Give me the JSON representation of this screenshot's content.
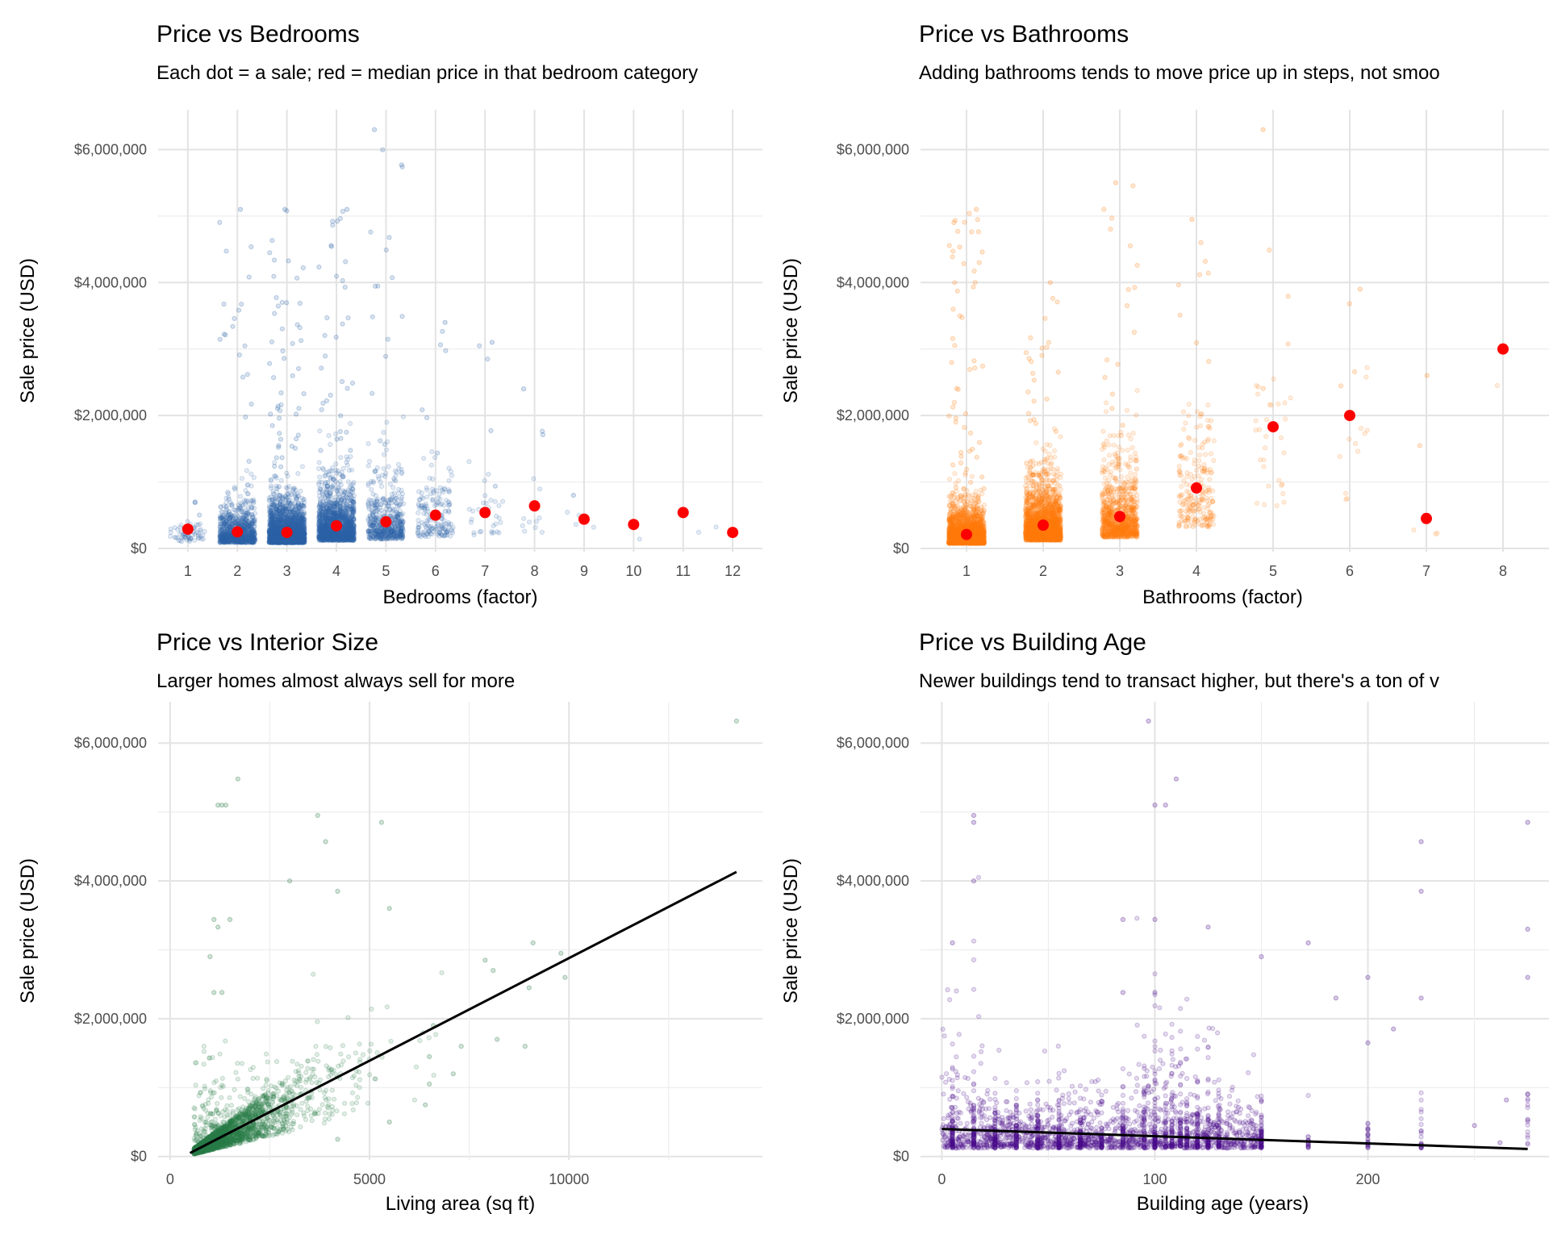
{
  "chart_data": [
    {
      "type": "scatter",
      "title": "Price vs Bedrooms",
      "subtitle": "Each dot = a sale; red = median price in that bedroom category",
      "xlabel": "Bedrooms (factor)",
      "ylabel": "Sale price (USD)",
      "x_scale": "discrete",
      "categories": [
        "1",
        "2",
        "3",
        "4",
        "5",
        "6",
        "7",
        "8",
        "9",
        "10",
        "11",
        "12"
      ],
      "ylim": [
        -50000,
        6600000
      ],
      "y_ticks": [
        0,
        2000000,
        4000000,
        6000000
      ],
      "y_tick_labels": [
        "$0",
        "$2,000,000",
        "$4,000,000",
        "$6,000,000"
      ],
      "grid": true,
      "point_color": "#2e65a8",
      "series": [
        {
          "name": "median",
          "color": "#ff0000",
          "values": [
            290000,
            250000,
            240000,
            340000,
            400000,
            500000,
            540000,
            640000,
            440000,
            360000,
            540000,
            240000
          ]
        }
      ],
      "category_spread": [
        {
          "n": 60,
          "max": 700000,
          "count_upper": 2
        },
        {
          "n": 900,
          "max": 5100000,
          "count_upper": 20
        },
        {
          "n": 2400,
          "max": 5100000,
          "count_upper": 60
        },
        {
          "n": 1600,
          "max": 5100000,
          "count_upper": 40
        },
        {
          "n": 500,
          "max": 6300000,
          "count_upper": 20
        },
        {
          "n": 160,
          "max": 3400000,
          "count_upper": 10
        },
        {
          "n": 30,
          "max": 3100000,
          "count_upper": 4
        },
        {
          "n": 10,
          "max": 2400000,
          "count_upper": 2
        },
        {
          "n": 4,
          "max": 800000,
          "count_upper": 0
        },
        {
          "n": 1,
          "max": 360000,
          "count_upper": 0
        },
        {
          "n": 1,
          "max": 540000,
          "count_upper": 0
        },
        {
          "n": 1,
          "max": 240000,
          "count_upper": 0
        }
      ]
    },
    {
      "type": "scatter",
      "title": "Price vs Bathrooms",
      "subtitle": "Adding bathrooms tends to move price up in steps, not smoo",
      "xlabel": "Bathrooms (factor)",
      "ylabel": "Sale price (USD)",
      "x_scale": "discrete",
      "categories": [
        "1",
        "2",
        "3",
        "4",
        "5",
        "6",
        "7",
        "8"
      ],
      "ylim": [
        -50000,
        6600000
      ],
      "y_ticks": [
        0,
        2000000,
        4000000,
        6000000
      ],
      "y_tick_labels": [
        "$0",
        "$2,000,000",
        "$4,000,000",
        "$6,000,000"
      ],
      "grid": true,
      "point_color": "#ff7f0e",
      "series": [
        {
          "name": "median",
          "color": "#ff0000",
          "values": [
            210000,
            350000,
            480000,
            910000,
            1830000,
            2000000,
            450000,
            3000000
          ]
        }
      ],
      "category_spread": [
        {
          "n": 2400,
          "max": 5100000,
          "count_upper": 60
        },
        {
          "n": 2200,
          "max": 4000000,
          "count_upper": 25
        },
        {
          "n": 900,
          "max": 5500000,
          "count_upper": 20
        },
        {
          "n": 220,
          "max": 4950000,
          "count_upper": 8
        },
        {
          "n": 30,
          "max": 6300000,
          "count_upper": 4
        },
        {
          "n": 12,
          "max": 3900000,
          "count_upper": 3
        },
        {
          "n": 3,
          "max": 2600000,
          "count_upper": 1
        },
        {
          "n": 1,
          "max": 3000000,
          "count_upper": 0
        }
      ]
    },
    {
      "type": "scatter",
      "title": "Price vs Interior Size",
      "subtitle": "Larger homes almost always sell for more",
      "xlabel": "Living area (sq ft)",
      "ylabel": "Sale price (USD)",
      "xlim": [
        -300,
        14850
      ],
      "x_ticks": [
        0,
        5000,
        10000
      ],
      "x_tick_labels": [
        "0",
        "5000",
        "10000"
      ],
      "ylim": [
        -50000,
        6600000
      ],
      "y_ticks": [
        0,
        2000000,
        4000000,
        6000000
      ],
      "y_tick_labels": [
        "$0",
        "$2,000,000",
        "$4,000,000",
        "$6,000,000"
      ],
      "grid": true,
      "point_color": "#2e7d4a",
      "trend_line": {
        "color": "#000000",
        "x": [
          500,
          14200
        ],
        "y": [
          50000,
          4130000
        ]
      },
      "points_sample": [
        {
          "x": 14200,
          "y": 6320000
        },
        {
          "x": 1700,
          "y": 5480000
        },
        {
          "x": 3700,
          "y": 4950000
        },
        {
          "x": 5300,
          "y": 4850000
        },
        {
          "x": 3900,
          "y": 4570000
        },
        {
          "x": 3000,
          "y": 4000000
        },
        {
          "x": 4200,
          "y": 3850000
        },
        {
          "x": 5500,
          "y": 3600000
        },
        {
          "x": 9100,
          "y": 3100000
        },
        {
          "x": 9800,
          "y": 2950000
        },
        {
          "x": 7900,
          "y": 2850000
        },
        {
          "x": 8100,
          "y": 2700000
        },
        {
          "x": 9000,
          "y": 2450000
        },
        {
          "x": 9900,
          "y": 2600000
        },
        {
          "x": 8900,
          "y": 1600000
        },
        {
          "x": 8200,
          "y": 1700000
        },
        {
          "x": 6600,
          "y": 1900000
        },
        {
          "x": 7100,
          "y": 1200000
        },
        {
          "x": 6500,
          "y": 1050000
        },
        {
          "x": 6400,
          "y": 750000
        },
        {
          "x": 5500,
          "y": 500000
        },
        {
          "x": 6500,
          "y": 1450000
        },
        {
          "x": 7300,
          "y": 1600000
        },
        {
          "x": 4200,
          "y": 250000
        },
        {
          "x": 1300,
          "y": 5100000
        },
        {
          "x": 1200,
          "y": 5100000
        },
        {
          "x": 1400,
          "y": 5100000
        },
        {
          "x": 1100,
          "y": 3440000
        },
        {
          "x": 1200,
          "y": 3330000
        },
        {
          "x": 1500,
          "y": 3440000
        },
        {
          "x": 1100,
          "y": 2380000
        },
        {
          "x": 1300,
          "y": 2380000
        },
        {
          "x": 1000,
          "y": 2900000
        }
      ]
    },
    {
      "type": "scatter",
      "title": "Price vs Building Age",
      "subtitle": "Newer buildings tend to transact higher, but there's a ton of v",
      "xlabel": "Building age (years)",
      "ylabel": "Sale price (USD)",
      "xlim": [
        -10,
        285
      ],
      "x_ticks": [
        0,
        100,
        200
      ],
      "x_tick_labels": [
        "0",
        "100",
        "200"
      ],
      "ylim": [
        -50000,
        6600000
      ],
      "y_ticks": [
        0,
        2000000,
        4000000,
        6000000
      ],
      "y_tick_labels": [
        "$0",
        "$2,000,000",
        "$4,000,000",
        "$6,000,000"
      ],
      "grid": true,
      "point_color": "#4b0c8a",
      "trend_line": {
        "color": "#000000",
        "x": [
          0,
          275
        ],
        "y": [
          400000,
          110000
        ]
      },
      "points_sample": [
        {
          "x": 97,
          "y": 6320000
        },
        {
          "x": 110,
          "y": 5480000
        },
        {
          "x": 100,
          "y": 5100000
        },
        {
          "x": 105,
          "y": 5100000
        },
        {
          "x": 15,
          "y": 4950000
        },
        {
          "x": 15,
          "y": 4850000
        },
        {
          "x": 275,
          "y": 4850000
        },
        {
          "x": 225,
          "y": 4570000
        },
        {
          "x": 15,
          "y": 4000000
        },
        {
          "x": 225,
          "y": 3850000
        },
        {
          "x": 275,
          "y": 3300000
        },
        {
          "x": 5,
          "y": 3100000
        },
        {
          "x": 85,
          "y": 3440000
        },
        {
          "x": 100,
          "y": 3440000
        },
        {
          "x": 125,
          "y": 3330000
        },
        {
          "x": 172,
          "y": 3100000
        },
        {
          "x": 150,
          "y": 2900000
        },
        {
          "x": 275,
          "y": 2600000
        },
        {
          "x": 200,
          "y": 2600000
        },
        {
          "x": 85,
          "y": 2380000
        },
        {
          "x": 100,
          "y": 2380000
        },
        {
          "x": 225,
          "y": 2300000
        },
        {
          "x": 185,
          "y": 2300000
        },
        {
          "x": 212,
          "y": 1850000
        },
        {
          "x": 200,
          "y": 1650000
        },
        {
          "x": 250,
          "y": 450000
        },
        {
          "x": 265,
          "y": 820000
        },
        {
          "x": 275,
          "y": 900000
        },
        {
          "x": 262,
          "y": 200000
        }
      ]
    }
  ]
}
